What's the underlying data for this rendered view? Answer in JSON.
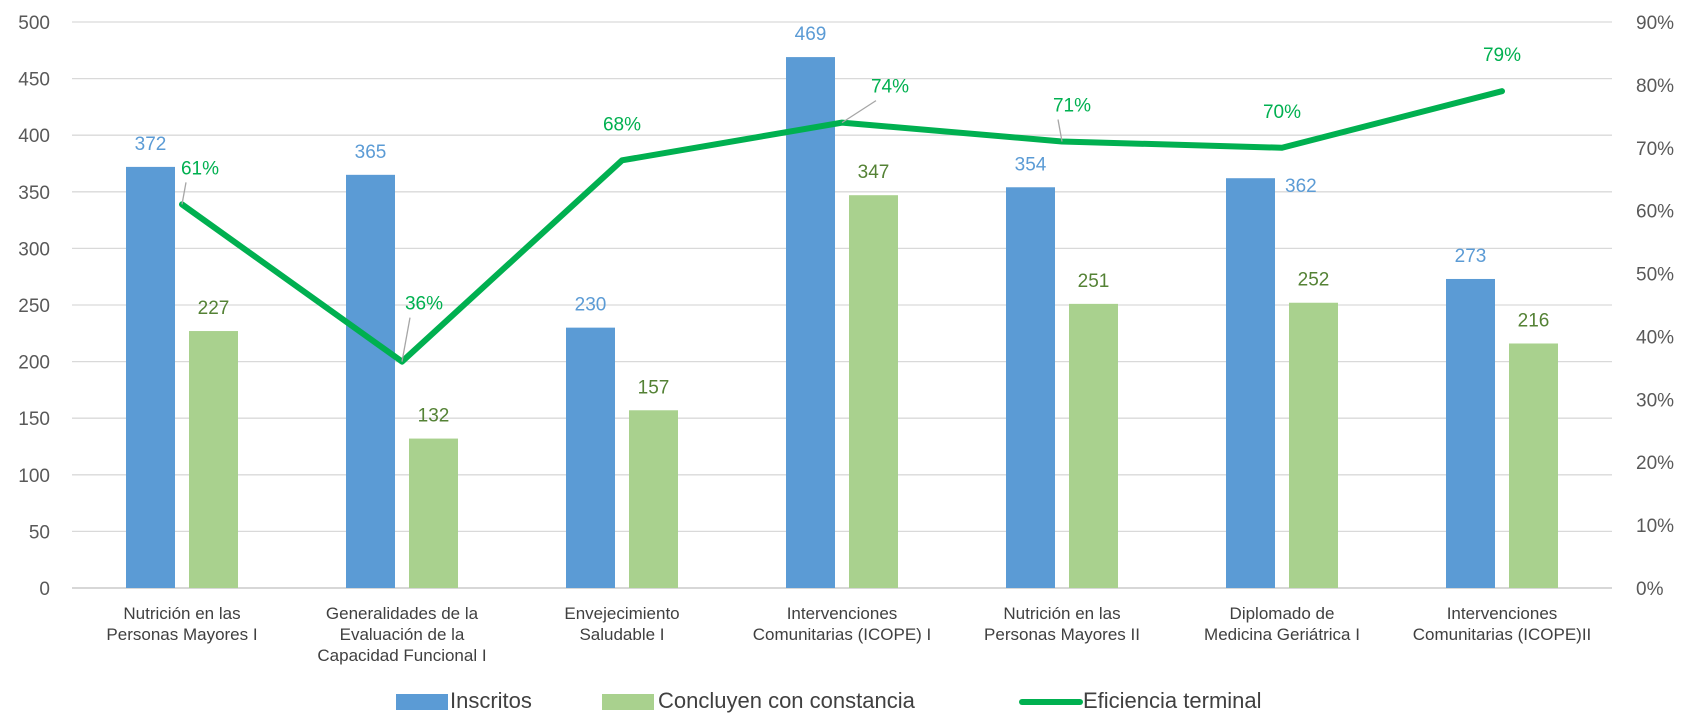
{
  "chart_data": {
    "type": "bar",
    "categories": [
      [
        "Nutrición en las",
        "Personas Mayores  I"
      ],
      [
        "Generalidades de la",
        "Evaluación de la",
        "Capacidad Funcional I"
      ],
      [
        "Envejecimiento",
        "Saludable I"
      ],
      [
        "Intervenciones",
        "Comunitarias (ICOPE) I"
      ],
      [
        "Nutrición en las",
        "Personas Mayores  II"
      ],
      [
        "Diplomado de",
        "Medicina Geriátrica I"
      ],
      [
        "Intervenciones",
        "Comunitarias (ICOPE)II"
      ]
    ],
    "series": [
      {
        "name": "Inscritos",
        "type": "bar",
        "axis": "left",
        "color": "#5b9bd5",
        "label_color": "#5b9bd5",
        "values": [
          372,
          365,
          230,
          469,
          354,
          362,
          273
        ]
      },
      {
        "name": "Concluyen con constancia",
        "type": "bar",
        "axis": "left",
        "color": "#a9d18e",
        "label_color": "#548235",
        "values": [
          227,
          132,
          157,
          347,
          251,
          252,
          216
        ]
      },
      {
        "name": "Eficiencia terminal",
        "type": "line",
        "axis": "right",
        "color": "#00b050",
        "label_color": "#00b050",
        "values": [
          61,
          36,
          68,
          74,
          71,
          70,
          79
        ],
        "labels": [
          "61%",
          "36%",
          "68%",
          "74%",
          "71%",
          "70%",
          "79%"
        ]
      }
    ],
    "y_left": {
      "min": 0,
      "max": 500,
      "step": 50,
      "ticks": [
        "0",
        "50",
        "100",
        "150",
        "200",
        "250",
        "300",
        "350",
        "400",
        "450",
        "500"
      ]
    },
    "y_right": {
      "min": 0,
      "max": 90,
      "step": 10,
      "ticks": [
        "0%",
        "10%",
        "20%",
        "30%",
        "40%",
        "50%",
        "60%",
        "70%",
        "80%",
        "90%"
      ]
    },
    "grid": true,
    "legend_position": "bottom",
    "title": "",
    "xlabel": "",
    "ylabel": ""
  }
}
